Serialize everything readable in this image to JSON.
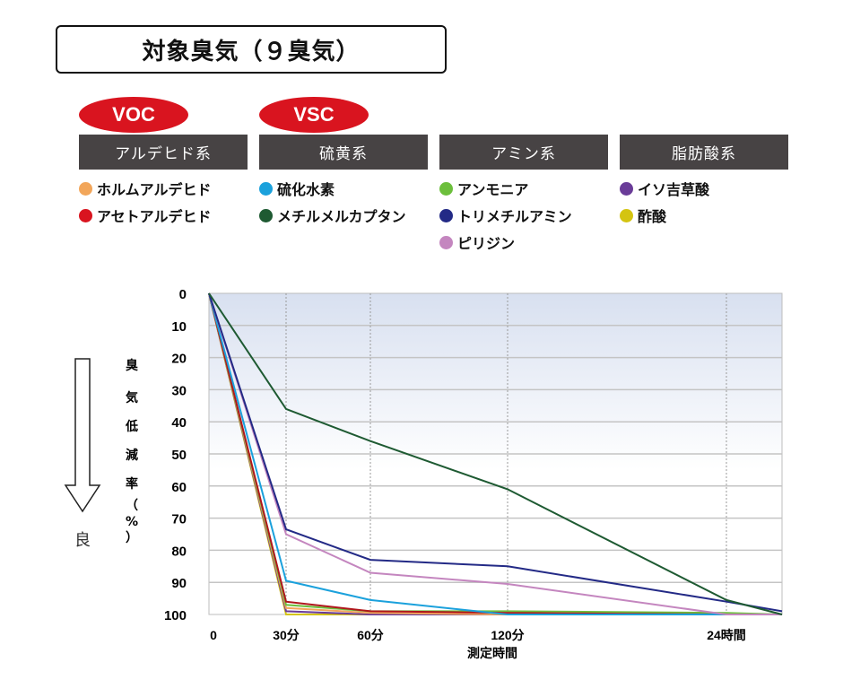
{
  "title": "対象臭気（９臭気）",
  "badges": [
    {
      "label": "VOC",
      "color": "#d9141f"
    },
    {
      "label": "VSC",
      "color": "#d9141f"
    }
  ],
  "categories": [
    {
      "label": "アルデヒド系",
      "items": [
        {
          "name": "ホルムアルデヒド",
          "color": "#f2a65a"
        },
        {
          "name": "アセトアルデヒド",
          "color": "#d9141f"
        }
      ]
    },
    {
      "label": "硫黄系",
      "items": [
        {
          "name": "硫化水素",
          "color": "#1ba1dc"
        },
        {
          "name": "メチルメルカプタン",
          "color": "#1e5a32"
        }
      ]
    },
    {
      "label": "アミン系",
      "items": [
        {
          "name": "アンモニア",
          "color": "#6cbf3c"
        },
        {
          "name": "トリメチルアミン",
          "color": "#232a86"
        },
        {
          "name": "ピリジン",
          "color": "#c486bf"
        }
      ]
    },
    {
      "label": "脂肪酸系",
      "items": [
        {
          "name": "イソ吉草酸",
          "color": "#6a3c98"
        },
        {
          "name": "酢酸",
          "color": "#d4c411"
        }
      ]
    }
  ],
  "axis": {
    "y_label_chars": [
      "臭",
      "気",
      "低",
      "減",
      "率",
      "（",
      "%",
      "）"
    ],
    "better_label": "良",
    "x_label": "測定時間"
  },
  "chart_data": {
    "type": "line",
    "title": "対象臭気（９臭気）",
    "xlabel": "測定時間",
    "ylabel": "臭気低減率（%）",
    "ylim": [
      0,
      100
    ],
    "y_inverted": true,
    "y_ticks": [
      "0",
      "10",
      "20",
      "30",
      "40",
      "50",
      "60",
      "70",
      "80",
      "90",
      "100"
    ],
    "x": [
      "0",
      "30分",
      "60分",
      "120分",
      "24時間",
      "end"
    ],
    "x_tick_labels": [
      "0",
      "30分",
      "60分",
      "120分",
      "24時間"
    ],
    "grid": true,
    "series": [
      {
        "name": "メチルメルカプタン",
        "color": "#1e5a32",
        "values": [
          0,
          36,
          46,
          61,
          95.5,
          100
        ]
      },
      {
        "name": "トリメチルアミン",
        "color": "#232a86",
        "values": [
          0,
          73.5,
          83,
          85,
          96,
          99
        ]
      },
      {
        "name": "ピリジン",
        "color": "#c486bf",
        "values": [
          0,
          75,
          87,
          90.5,
          100,
          100
        ]
      },
      {
        "name": "硫化水素",
        "color": "#1ba1dc",
        "values": [
          0,
          89.5,
          95.5,
          100,
          100,
          100
        ]
      },
      {
        "name": "アセトアルデヒド",
        "color": "#b0161c",
        "values": [
          0,
          96,
          99,
          99.5,
          100,
          100
        ]
      },
      {
        "name": "アンモニア",
        "color": "#6cbf3c",
        "values": [
          0,
          97,
          99,
          99,
          99.5,
          100
        ]
      },
      {
        "name": "ホルムアルデヒド",
        "color": "#f2a65a",
        "values": [
          0,
          98,
          99.5,
          100,
          100,
          100
        ]
      },
      {
        "name": "イソ吉草酸",
        "color": "#6a3c98",
        "values": [
          0,
          99,
          100,
          100,
          100,
          100
        ]
      },
      {
        "name": "酢酸",
        "color": "#d4c411",
        "values": [
          0,
          100,
          100,
          100,
          100,
          100
        ]
      }
    ]
  }
}
